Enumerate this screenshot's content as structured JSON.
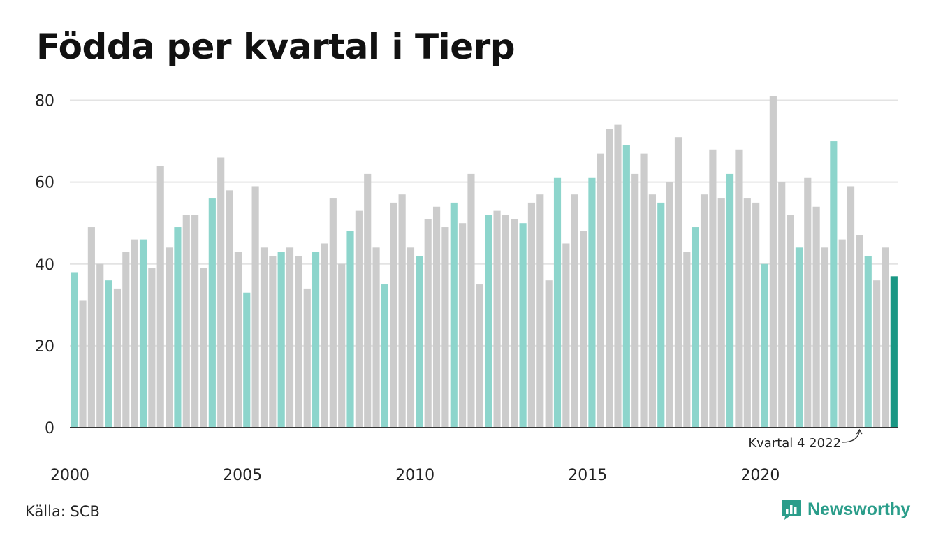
{
  "title": "Födda per kvartal i Tierp",
  "source": "Källa: SCB",
  "brand": {
    "name": "Newsworthy",
    "icon": "chart-bubble-icon"
  },
  "colors": {
    "default": "#cccccc",
    "q1": "#8dd5cc",
    "highlight": "#1a9784",
    "grid": "#e3e3e3",
    "axis": "#333333"
  },
  "chart_data": {
    "type": "bar",
    "title": "Födda per kvartal i Tierp",
    "xlabel": "",
    "ylabel": "",
    "ylim": [
      0,
      80
    ],
    "yticks": [
      "0",
      "20",
      "40",
      "60",
      "80"
    ],
    "xticks": [
      "2000",
      "2005",
      "2010",
      "2015",
      "2020"
    ],
    "grid": true,
    "start_year": 2000,
    "start_quarter": 1,
    "values": [
      38,
      31,
      49,
      40,
      36,
      34,
      43,
      46,
      46,
      39,
      64,
      44,
      49,
      52,
      52,
      39,
      56,
      66,
      58,
      43,
      33,
      59,
      44,
      42,
      43,
      44,
      42,
      34,
      43,
      45,
      56,
      40,
      48,
      53,
      62,
      44,
      35,
      55,
      57,
      44,
      42,
      51,
      54,
      49,
      55,
      50,
      62,
      35,
      52,
      53,
      52,
      51,
      50,
      55,
      57,
      36,
      61,
      45,
      57,
      48,
      61,
      67,
      73,
      74,
      69,
      62,
      67,
      57,
      55,
      60,
      71,
      43,
      49,
      57,
      68,
      56,
      62,
      68,
      56,
      55,
      40,
      81,
      60,
      52,
      44,
      61,
      54,
      44,
      70,
      46,
      59,
      47,
      42,
      36,
      44,
      37
    ],
    "highlight_index": 95,
    "annotation": {
      "text": "Kvartal 4 2022",
      "index": 91
    }
  }
}
